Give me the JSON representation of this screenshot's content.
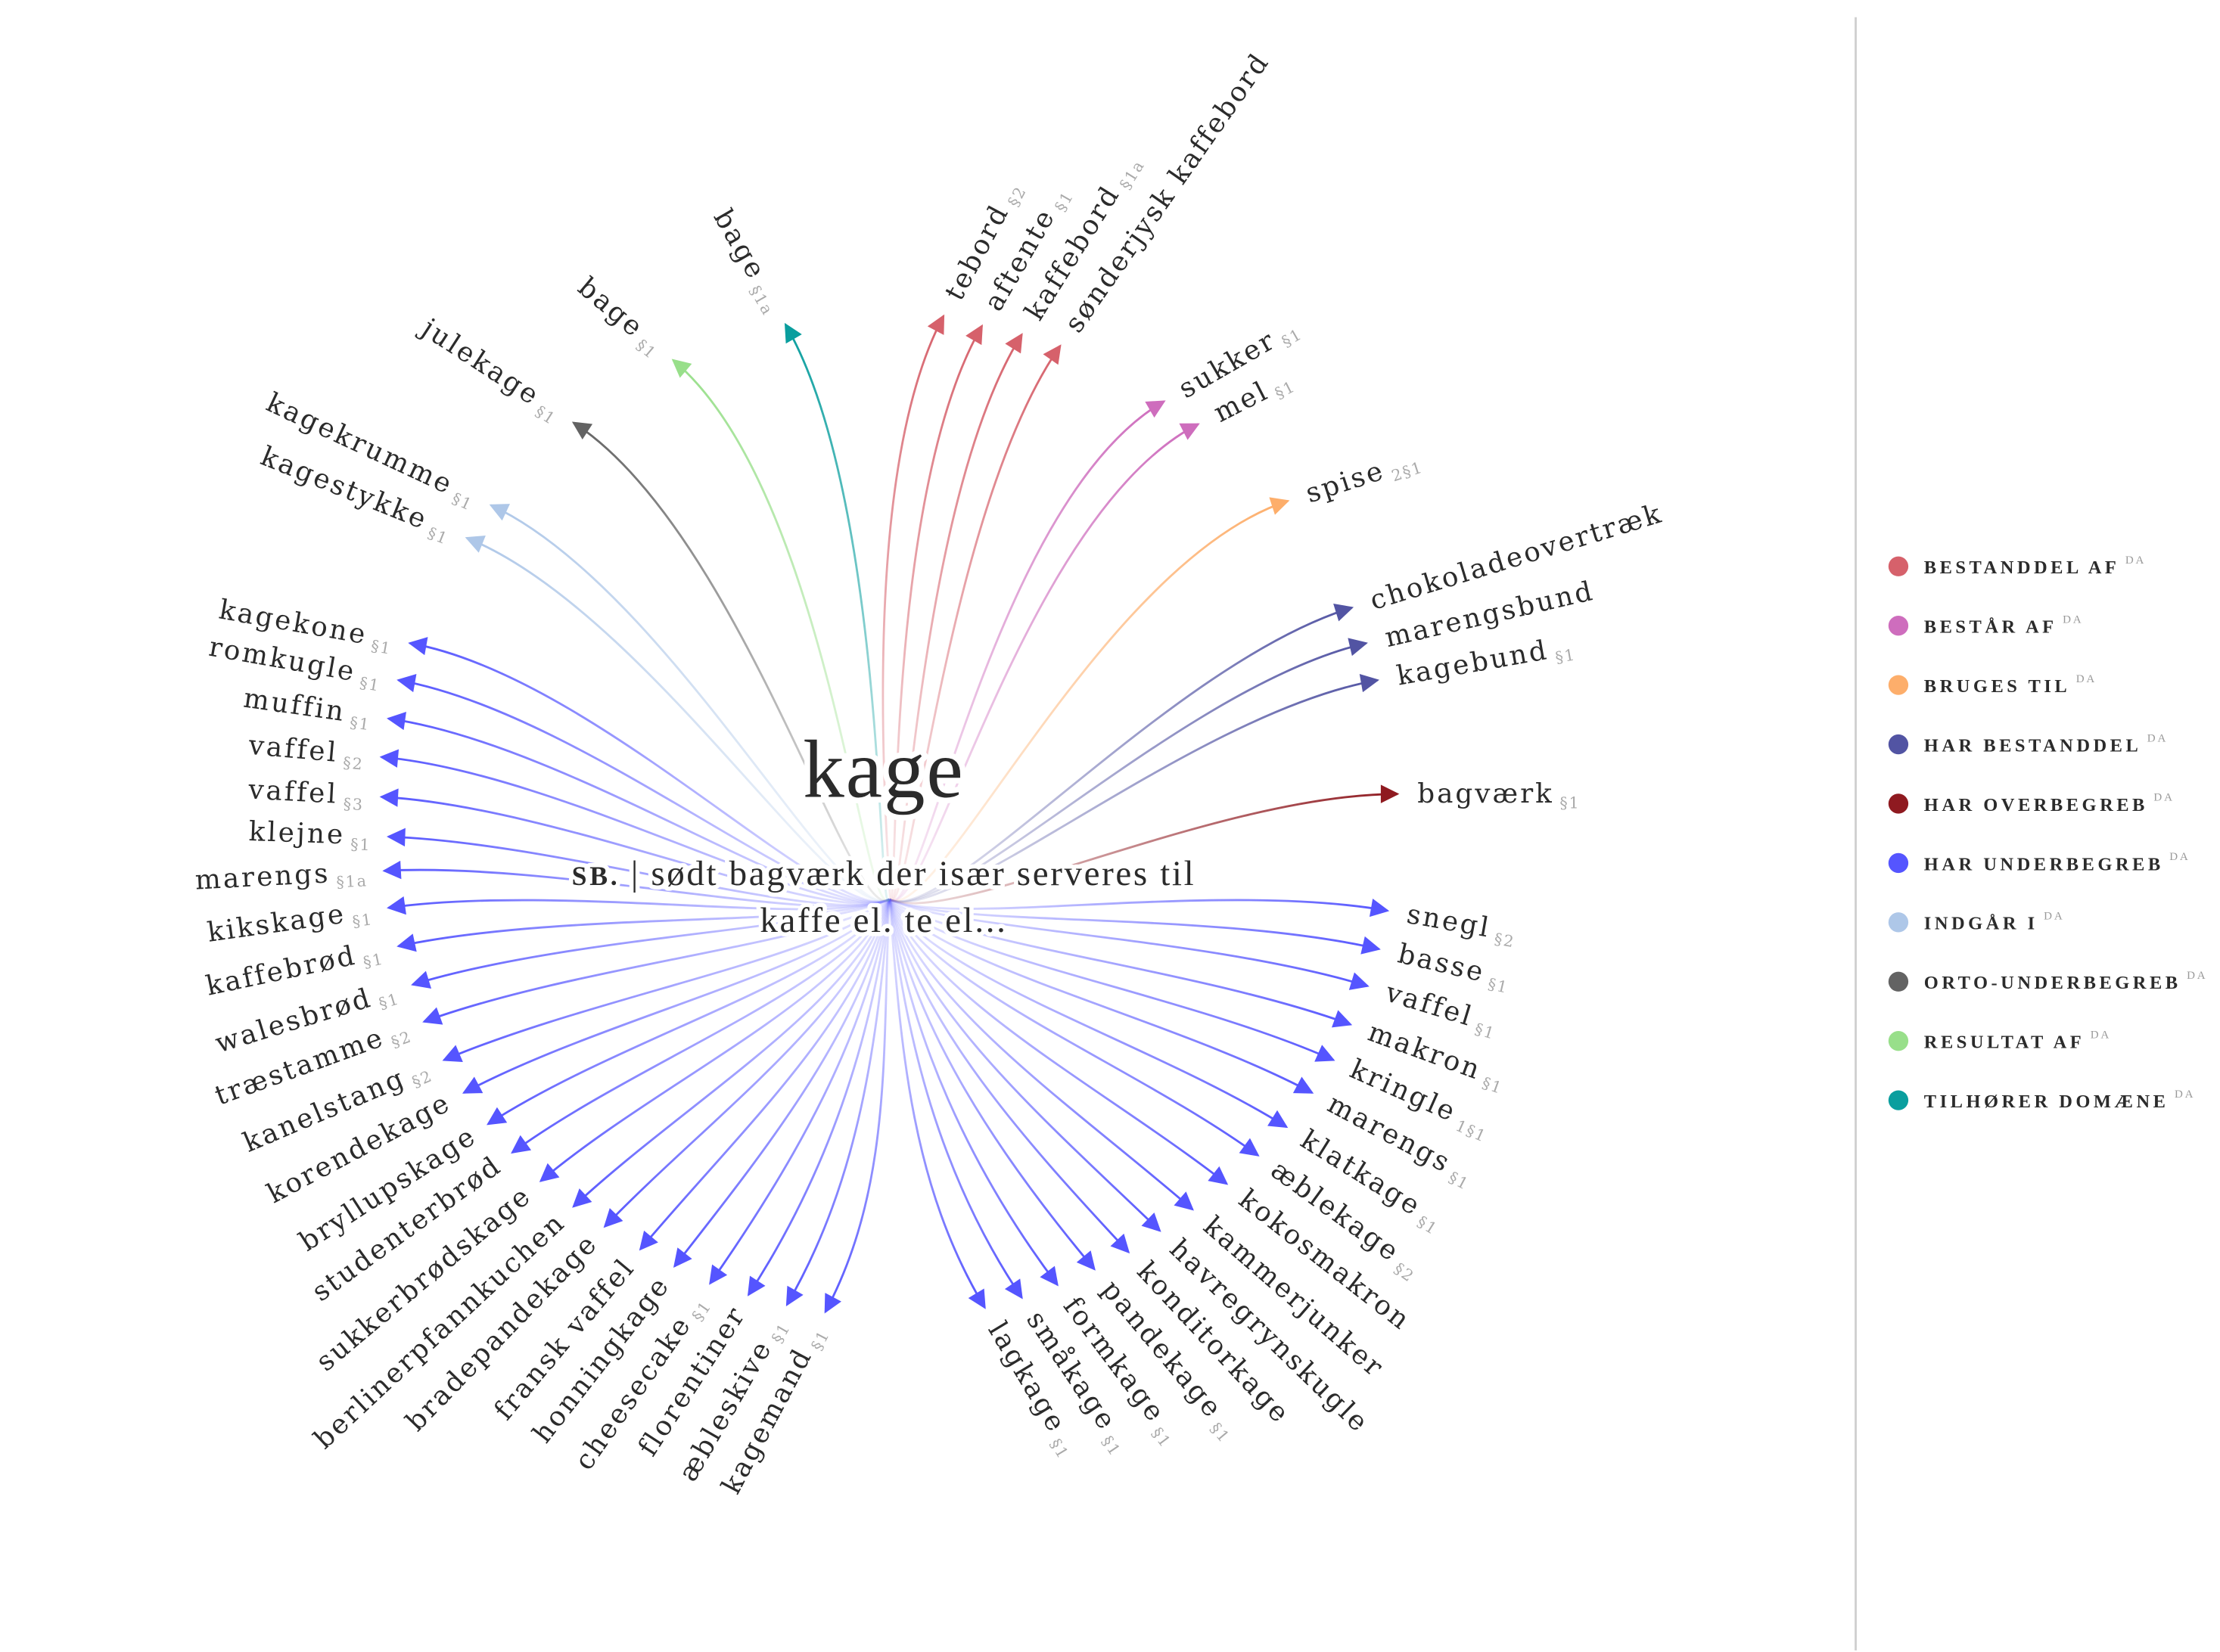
{
  "headword": "kage",
  "definition": {
    "pos": "SB.",
    "separator": "|",
    "line1": "sødt bagværk der især serveres til",
    "line2": "kaffe el. te el..."
  },
  "legend": [
    {
      "label": "BESTANDDEL AF",
      "lang": "DA",
      "color": "#d6616b"
    },
    {
      "label": "BESTÅR AF",
      "lang": "DA",
      "color": "#ce6dbd"
    },
    {
      "label": "BRUGES TIL",
      "lang": "DA",
      "color": "#fdae6b"
    },
    {
      "label": "HAR BESTANDDEL",
      "lang": "DA",
      "color": "#5254a3"
    },
    {
      "label": "HAR OVERBEGREB",
      "lang": "DA",
      "color": "#8f1a20"
    },
    {
      "label": "HAR UNDERBEGREB",
      "lang": "DA",
      "color": "#5555ff"
    },
    {
      "label": "INDGÅR I",
      "lang": "DA",
      "color": "#aec7e8"
    },
    {
      "label": "ORTO-UNDERBEGREB",
      "lang": "DA",
      "color": "#636363"
    },
    {
      "label": "RESULTAT AF",
      "lang": "DA",
      "color": "#98df8a"
    },
    {
      "label": "TILHØRER DOMÆNE",
      "lang": "DA",
      "color": "#0a9e9e"
    }
  ],
  "nodes": [
    {
      "label": "tebord",
      "sense": "§2",
      "rel": 0
    },
    {
      "label": "aftente",
      "sense": "§1",
      "rel": 0
    },
    {
      "label": "kaffebord",
      "sense": "§1a",
      "rel": 0
    },
    {
      "label": "sønderjysk kaffebord",
      "sense": "",
      "rel": 0
    },
    {
      "label": "sukker",
      "sense": "§1",
      "rel": 1
    },
    {
      "label": "mel",
      "sense": "§1",
      "rel": 1
    },
    {
      "label": "spise",
      "sense": "2§1",
      "rel": 2
    },
    {
      "label": "chokoladeovertræk",
      "sense": "",
      "rel": 3
    },
    {
      "label": "marengsbund",
      "sense": "",
      "rel": 3
    },
    {
      "label": "kagebund",
      "sense": "§1",
      "rel": 3
    },
    {
      "label": "bagværk",
      "sense": "§1",
      "rel": 4
    },
    {
      "label": "snegl",
      "sense": "§2",
      "rel": 5
    },
    {
      "label": "basse",
      "sense": "§1",
      "rel": 5
    },
    {
      "label": "vaffel",
      "sense": "§1",
      "rel": 5
    },
    {
      "label": "makron",
      "sense": "§1",
      "rel": 5
    },
    {
      "label": "kringle",
      "sense": "1§1",
      "rel": 5
    },
    {
      "label": "marengs",
      "sense": "§1",
      "rel": 5
    },
    {
      "label": "klatkage",
      "sense": "§1",
      "rel": 5
    },
    {
      "label": "æblekage",
      "sense": "§2",
      "rel": 5
    },
    {
      "label": "kokosmakron",
      "sense": "",
      "rel": 5
    },
    {
      "label": "kammerjunker",
      "sense": "",
      "rel": 5
    },
    {
      "label": "havregrynskugle",
      "sense": "",
      "rel": 5
    },
    {
      "label": "konditorkage",
      "sense": "",
      "rel": 5
    },
    {
      "label": "pandekage",
      "sense": "§1",
      "rel": 5
    },
    {
      "label": "formkage",
      "sense": "§1",
      "rel": 5
    },
    {
      "label": "småkage",
      "sense": "§1",
      "rel": 5
    },
    {
      "label": "lagkage",
      "sense": "§1",
      "rel": 5
    },
    {
      "label": "kagemand",
      "sense": "§1",
      "rel": 5
    },
    {
      "label": "æbleskive",
      "sense": "§1",
      "rel": 5
    },
    {
      "label": "florentiner",
      "sense": "",
      "rel": 5
    },
    {
      "label": "cheesecake",
      "sense": "§1",
      "rel": 5
    },
    {
      "label": "honningkage",
      "sense": "",
      "rel": 5
    },
    {
      "label": "fransk vaffel",
      "sense": "",
      "rel": 5
    },
    {
      "label": "bradepandekage",
      "sense": "",
      "rel": 5
    },
    {
      "label": "berlinerpfannkuchen",
      "sense": "",
      "rel": 5
    },
    {
      "label": "sukkerbrødskage",
      "sense": "",
      "rel": 5
    },
    {
      "label": "studenterbrød",
      "sense": "",
      "rel": 5
    },
    {
      "label": "bryllupskage",
      "sense": "",
      "rel": 5
    },
    {
      "label": "korendekage",
      "sense": "",
      "rel": 5
    },
    {
      "label": "kanelstang",
      "sense": "§2",
      "rel": 5
    },
    {
      "label": "træstamme",
      "sense": "§2",
      "rel": 5
    },
    {
      "label": "walesbrød",
      "sense": "§1",
      "rel": 5
    },
    {
      "label": "kaffebrød",
      "sense": "§1",
      "rel": 5
    },
    {
      "label": "kikskage",
      "sense": "§1",
      "rel": 5
    },
    {
      "label": "marengs",
      "sense": "§1a",
      "rel": 5
    },
    {
      "label": "klejne",
      "sense": "§1",
      "rel": 5
    },
    {
      "label": "vaffel",
      "sense": "§3",
      "rel": 5
    },
    {
      "label": "vaffel",
      "sense": "§2",
      "rel": 5
    },
    {
      "label": "muffin",
      "sense": "§1",
      "rel": 5
    },
    {
      "label": "romkugle",
      "sense": "§1",
      "rel": 5
    },
    {
      "label": "kagekone",
      "sense": "§1",
      "rel": 5
    },
    {
      "label": "kagestykke",
      "sense": "§1",
      "rel": 6
    },
    {
      "label": "kagekrumme",
      "sense": "§1",
      "rel": 6
    },
    {
      "label": "julekage",
      "sense": "§1",
      "rel": 7
    },
    {
      "label": "bage",
      "sense": "§1",
      "rel": 8
    },
    {
      "label": "bage",
      "sense": "§1a",
      "rel": 9
    }
  ]
}
